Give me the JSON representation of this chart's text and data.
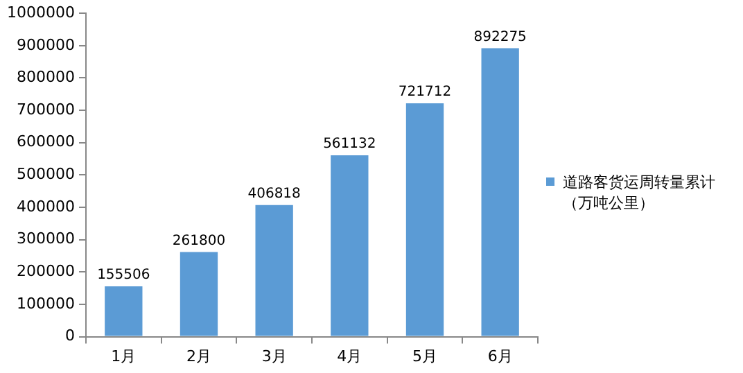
{
  "chart_data": {
    "type": "bar",
    "categories": [
      "1月",
      "2月",
      "3月",
      "4月",
      "5月",
      "6月"
    ],
    "series": [
      {
        "name": "道路客货运周转量累计（万吨公里）",
        "color": "#5b9bd5",
        "values": [
          155506,
          261800,
          406818,
          561132,
          721712,
          892275
        ]
      }
    ],
    "ylim": [
      0,
      1000000
    ],
    "yticks": [
      0,
      100000,
      200000,
      300000,
      400000,
      500000,
      600000,
      700000,
      800000,
      900000,
      1000000
    ],
    "grid": false,
    "legend": "right",
    "data_labels": true
  }
}
